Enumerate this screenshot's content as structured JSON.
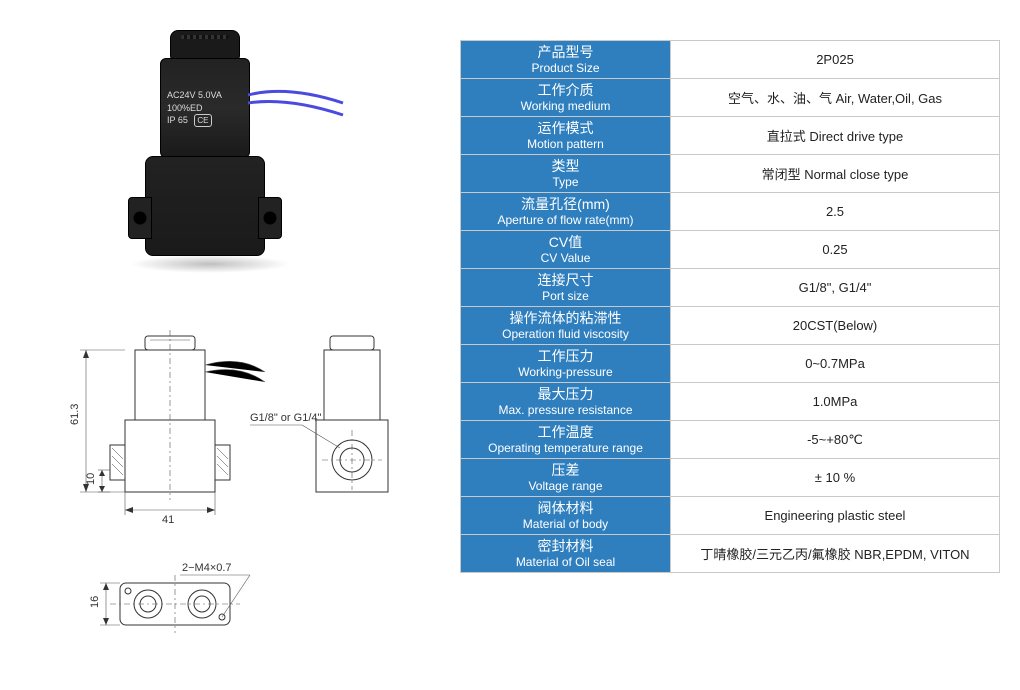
{
  "product_photo_label": {
    "line1": "AC24V  5.0VA",
    "line2": "100%ED",
    "line3": "IP 65",
    "ce": "CE"
  },
  "drawings": {
    "dim_height": "61.3",
    "dim_base_h": "10",
    "dim_width": "41",
    "port_note": "G1/8\" or G1/4\"",
    "dim_thread": "2−M4×0.7",
    "dim_bottom_h": "16"
  },
  "spec_table": {
    "header_bg": "#2f7fbf",
    "header_fg": "#ffffff",
    "value_fg": "#222222",
    "border": "#c9c9c9",
    "rows": [
      {
        "cn": "产品型号",
        "en": "Product Size",
        "value": "2P025"
      },
      {
        "cn": "工作介质",
        "en": "Working medium",
        "value": "空气、水、油、气 Air, Water,Oil, Gas"
      },
      {
        "cn": "运作模式",
        "en": "Motion pattern",
        "value": "直拉式 Direct drive type"
      },
      {
        "cn": "类型",
        "en": "Type",
        "value": "常闭型  Normal close type"
      },
      {
        "cn": "流量孔径(mm)",
        "en": "Aperture of flow rate(mm)",
        "value": "2.5"
      },
      {
        "cn": "CV值",
        "en": "CV Value",
        "value": "0.25"
      },
      {
        "cn": "连接尺寸",
        "en": "Port size",
        "value": "G1/8\", G1/4\""
      },
      {
        "cn": "操作流体的粘滞性",
        "en": "Operation fluid viscosity",
        "value": "20CST(Below)"
      },
      {
        "cn": "工作压力",
        "en": "Working-pressure",
        "value": "0~0.7MPa"
      },
      {
        "cn": "最大压力",
        "en": "Max. pressure resistance",
        "value": "1.0MPa"
      },
      {
        "cn": "工作温度",
        "en": "Operating temperature range",
        "value": "-5~+80℃"
      },
      {
        "cn": "压差",
        "en": "Voltage range",
        "value": "± 10 %"
      },
      {
        "cn": "阀体材料",
        "en": "Material of body",
        "value": "Engineering plastic steel"
      },
      {
        "cn": "密封材料",
        "en": "Material of Oil seal",
        "value": "丁晴橡胶/三元乙丙/氟橡胶  NBR,EPDM, VITON"
      }
    ]
  }
}
